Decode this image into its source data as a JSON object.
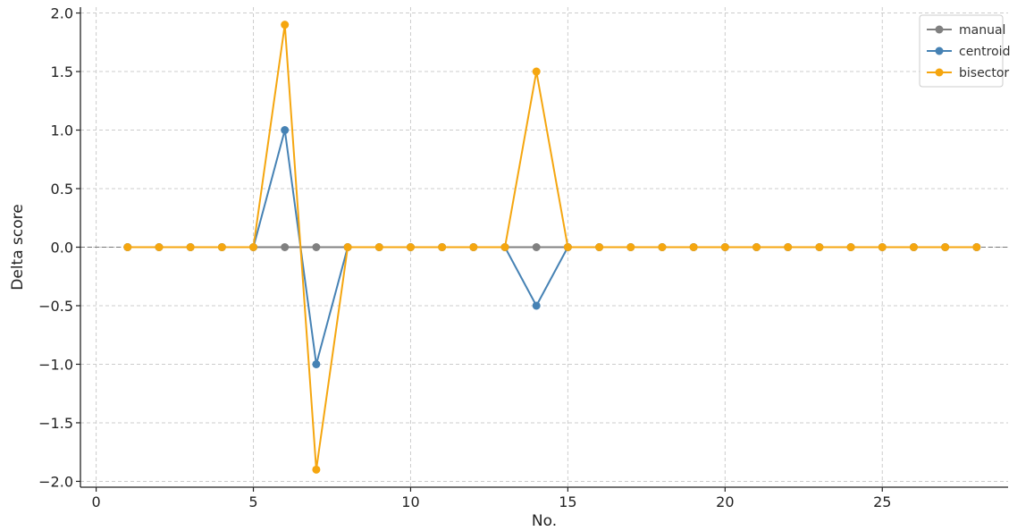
{
  "chart_data": {
    "type": "line",
    "xlabel": "No.",
    "ylabel": "Delta score",
    "xlim": [
      -0.5,
      29
    ],
    "ylim": [
      -2.05,
      2.05
    ],
    "xticks": [
      0,
      5,
      10,
      15,
      20,
      25
    ],
    "yticks": [
      -2.0,
      -1.5,
      -1.0,
      -0.5,
      0.0,
      0.5,
      1.0,
      1.5,
      2.0
    ],
    "grid": true,
    "reference_line_y": 0,
    "legend_position": "top-right",
    "x": [
      1,
      2,
      3,
      4,
      5,
      6,
      7,
      8,
      9,
      10,
      11,
      12,
      13,
      14,
      15,
      16,
      17,
      18,
      19,
      20,
      21,
      22,
      23,
      24,
      25,
      26,
      27,
      28
    ],
    "series": [
      {
        "name": "manual",
        "color": "#808080",
        "values": [
          0,
          0,
          0,
          0,
          0,
          0,
          0,
          0,
          0,
          0,
          0,
          0,
          0,
          0,
          0,
          0,
          0,
          0,
          0,
          0,
          0,
          0,
          0,
          0,
          0,
          0,
          0,
          0
        ]
      },
      {
        "name": "centroid",
        "color": "#4682B4",
        "values": [
          0,
          0,
          0,
          0,
          0,
          1.0,
          -1.0,
          0,
          0,
          0,
          0,
          0,
          0,
          -0.5,
          0,
          0,
          0,
          0,
          0,
          0,
          0,
          0,
          0,
          0,
          0,
          0,
          0,
          0
        ]
      },
      {
        "name": "bisector",
        "color": "#F5A60F",
        "values": [
          0,
          0,
          0,
          0,
          0,
          1.9,
          -1.9,
          0,
          0,
          0,
          0,
          0,
          0,
          1.5,
          0,
          0,
          0,
          0,
          0,
          0,
          0,
          0,
          0,
          0,
          0,
          0,
          0,
          0
        ]
      }
    ]
  }
}
